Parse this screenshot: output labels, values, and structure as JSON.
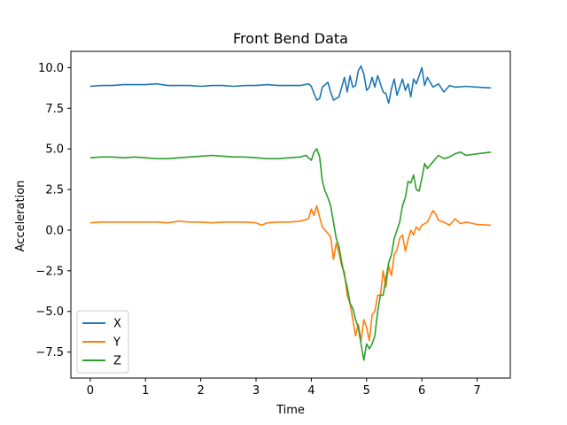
{
  "chart_data": {
    "type": "line",
    "title": "Front Bend Data",
    "xlabel": "Time",
    "ylabel": "Acceleration",
    "xlim": [
      -0.35,
      7.6
    ],
    "ylim": [
      -9.1,
      11.0
    ],
    "xticks": [
      0,
      1,
      2,
      3,
      4,
      5,
      6,
      7
    ],
    "yticks": [
      -7.5,
      -5.0,
      -2.5,
      0.0,
      2.5,
      5.0,
      7.5,
      10.0
    ],
    "xtick_labels": [
      "0",
      "1",
      "2",
      "3",
      "4",
      "5",
      "6",
      "7"
    ],
    "ytick_labels": [
      "−7.5",
      "−5.0",
      "−2.5",
      "0.0",
      "2.5",
      "5.0",
      "7.5",
      "10.0"
    ],
    "legend_position": "lower-left",
    "grid": false,
    "series": [
      {
        "name": "X",
        "color": "#1f77b4",
        "x": [
          0.0,
          0.2,
          0.4,
          0.6,
          0.8,
          1.0,
          1.2,
          1.4,
          1.6,
          1.8,
          2.0,
          2.2,
          2.4,
          2.6,
          2.8,
          3.0,
          3.2,
          3.4,
          3.6,
          3.8,
          3.95,
          4.0,
          4.05,
          4.1,
          4.15,
          4.2,
          4.3,
          4.35,
          4.4,
          4.5,
          4.6,
          4.65,
          4.7,
          4.75,
          4.8,
          4.85,
          4.9,
          4.95,
          5.0,
          5.05,
          5.1,
          5.15,
          5.2,
          5.25,
          5.3,
          5.35,
          5.4,
          5.45,
          5.5,
          5.55,
          5.6,
          5.65,
          5.7,
          5.75,
          5.8,
          5.85,
          5.9,
          5.95,
          6.0,
          6.05,
          6.1,
          6.2,
          6.3,
          6.4,
          6.5,
          6.6,
          6.8,
          7.0,
          7.25
        ],
        "y": [
          8.85,
          8.9,
          8.9,
          8.95,
          8.95,
          8.95,
          9.0,
          8.9,
          8.9,
          8.9,
          8.85,
          8.9,
          8.9,
          8.85,
          8.9,
          8.9,
          8.95,
          8.9,
          8.9,
          8.9,
          9.0,
          8.85,
          8.4,
          8.0,
          8.1,
          8.8,
          9.1,
          8.5,
          8.0,
          8.2,
          9.4,
          8.5,
          9.5,
          8.8,
          8.9,
          9.8,
          10.1,
          9.6,
          8.6,
          8.8,
          9.4,
          8.8,
          9.5,
          9.0,
          8.5,
          8.4,
          7.8,
          8.7,
          9.3,
          8.3,
          8.8,
          9.3,
          8.6,
          9.0,
          8.2,
          9.3,
          9.0,
          9.5,
          10.0,
          8.9,
          9.4,
          8.8,
          9.0,
          8.5,
          8.9,
          8.8,
          8.85,
          8.8,
          8.75
        ]
      },
      {
        "name": "Y",
        "color": "#ff7f0e",
        "x": [
          0.0,
          0.2,
          0.4,
          0.6,
          0.8,
          1.0,
          1.2,
          1.4,
          1.6,
          1.8,
          2.0,
          2.2,
          2.4,
          2.6,
          2.8,
          3.0,
          3.1,
          3.2,
          3.4,
          3.6,
          3.8,
          3.95,
          4.0,
          4.05,
          4.1,
          4.15,
          4.2,
          4.25,
          4.3,
          4.35,
          4.4,
          4.45,
          4.5,
          4.55,
          4.6,
          4.65,
          4.7,
          4.75,
          4.8,
          4.85,
          4.9,
          4.95,
          5.0,
          5.05,
          5.1,
          5.15,
          5.2,
          5.25,
          5.3,
          5.35,
          5.4,
          5.45,
          5.5,
          5.55,
          5.6,
          5.65,
          5.7,
          5.75,
          5.8,
          5.85,
          5.9,
          5.95,
          6.0,
          6.1,
          6.2,
          6.25,
          6.3,
          6.4,
          6.5,
          6.6,
          6.7,
          6.8,
          7.0,
          7.25
        ],
        "y": [
          0.45,
          0.5,
          0.5,
          0.5,
          0.5,
          0.5,
          0.5,
          0.45,
          0.55,
          0.5,
          0.5,
          0.45,
          0.5,
          0.5,
          0.5,
          0.45,
          0.3,
          0.45,
          0.5,
          0.5,
          0.55,
          0.7,
          1.3,
          0.9,
          1.5,
          0.8,
          0.2,
          0.0,
          -0.2,
          -0.4,
          -1.8,
          -0.8,
          -1.4,
          -2.2,
          -2.6,
          -4.0,
          -4.5,
          -5.5,
          -6.5,
          -5.8,
          -6.8,
          -5.5,
          -6.0,
          -6.8,
          -5.2,
          -5.0,
          -4.0,
          -4.0,
          -2.5,
          -3.5,
          -2.2,
          -2.8,
          -1.5,
          -1.2,
          -0.5,
          -0.3,
          -1.3,
          -0.6,
          0.0,
          -0.3,
          0.2,
          0.0,
          0.3,
          0.5,
          1.2,
          1.0,
          0.6,
          0.5,
          0.3,
          0.7,
          0.4,
          0.5,
          0.35,
          0.3
        ]
      },
      {
        "name": "Z",
        "color": "#2ca02c",
        "x": [
          0.0,
          0.2,
          0.4,
          0.6,
          0.8,
          1.0,
          1.2,
          1.4,
          1.6,
          1.8,
          2.0,
          2.2,
          2.4,
          2.6,
          2.8,
          3.0,
          3.2,
          3.4,
          3.6,
          3.8,
          3.9,
          4.0,
          4.05,
          4.1,
          4.15,
          4.2,
          4.25,
          4.3,
          4.35,
          4.4,
          4.45,
          4.5,
          4.55,
          4.6,
          4.65,
          4.7,
          4.75,
          4.8,
          4.85,
          4.9,
          4.95,
          5.0,
          5.05,
          5.1,
          5.15,
          5.2,
          5.25,
          5.3,
          5.35,
          5.4,
          5.45,
          5.5,
          5.55,
          5.6,
          5.65,
          5.7,
          5.75,
          5.8,
          5.85,
          5.9,
          5.95,
          6.0,
          6.05,
          6.1,
          6.2,
          6.3,
          6.4,
          6.5,
          6.6,
          6.7,
          6.8,
          7.0,
          7.25
        ],
        "y": [
          4.45,
          4.5,
          4.5,
          4.45,
          4.5,
          4.45,
          4.4,
          4.4,
          4.45,
          4.5,
          4.55,
          4.6,
          4.55,
          4.5,
          4.5,
          4.45,
          4.4,
          4.4,
          4.45,
          4.5,
          4.6,
          4.3,
          4.8,
          5.0,
          4.5,
          3.0,
          2.4,
          2.0,
          1.5,
          0.5,
          -0.5,
          -1.0,
          -2.0,
          -2.8,
          -3.5,
          -4.5,
          -4.8,
          -5.5,
          -6.0,
          -7.0,
          -8.0,
          -7.0,
          -7.3,
          -7.0,
          -6.5,
          -5.0,
          -4.0,
          -4.0,
          -3.0,
          -2.0,
          -1.5,
          -0.5,
          0.0,
          0.5,
          1.5,
          2.0,
          3.0,
          2.9,
          3.4,
          2.5,
          2.4,
          3.2,
          4.1,
          3.8,
          4.2,
          4.6,
          4.4,
          4.5,
          4.7,
          4.8,
          4.6,
          4.7,
          4.8
        ]
      }
    ]
  }
}
